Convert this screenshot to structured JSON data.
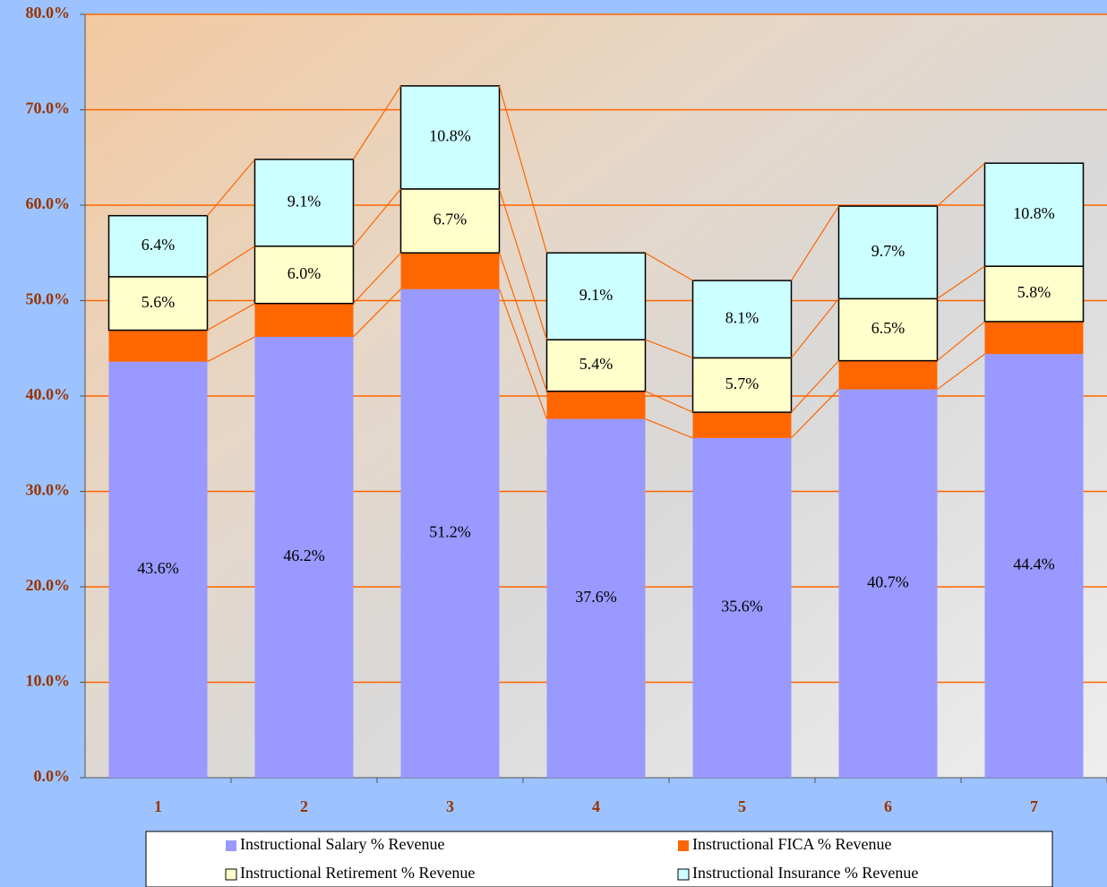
{
  "chart_data": {
    "type": "stacked_bar",
    "categories": [
      "1",
      "2",
      "3",
      "4",
      "5",
      "6",
      "7"
    ],
    "series": [
      {
        "name": "Instructional Salary % Revenue",
        "color": "#9999ff",
        "values": [
          43.6,
          46.2,
          51.2,
          37.6,
          35.6,
          40.7,
          44.4
        ],
        "value_labels": [
          "43.6%",
          "46.2%",
          "51.2%",
          "37.6%",
          "35.6%",
          "40.7%",
          "44.4%"
        ]
      },
      {
        "name": "Instructional FICA % Revenue",
        "color": "#ff6600",
        "values": [
          3.3,
          3.5,
          3.8,
          2.9,
          2.7,
          3.0,
          3.4
        ]
      },
      {
        "name": "Instructional Retirement % Revenue",
        "color": "#ffffcc",
        "values": [
          5.6,
          6.0,
          6.7,
          5.4,
          5.7,
          6.5,
          5.8
        ],
        "value_labels": [
          "5.6%",
          "6.0%",
          "6.7%",
          "5.4%",
          "5.7%",
          "6.5%",
          "5.8%"
        ]
      },
      {
        "name": "Instructional Insurance % Revenue",
        "color": "#ccffff",
        "values": [
          6.4,
          9.1,
          10.8,
          9.1,
          8.1,
          9.7,
          10.8
        ],
        "value_labels": [
          "6.4%",
          "9.1%",
          "10.8%",
          "9.1%",
          "8.1%",
          "9.7%",
          "10.8%"
        ]
      }
    ],
    "ylim": [
      0,
      80
    ],
    "yticks": [
      {
        "value": 0,
        "label": "0.0%"
      },
      {
        "value": 10,
        "label": "10.0%"
      },
      {
        "value": 20,
        "label": "20.0%"
      },
      {
        "value": 30,
        "label": "30.0%"
      },
      {
        "value": 40,
        "label": "40.0%"
      },
      {
        "value": 50,
        "label": "50.0%"
      },
      {
        "value": 60,
        "label": "60.0%"
      },
      {
        "value": 70,
        "label": "70.0%"
      },
      {
        "value": 80,
        "label": "80.0%"
      }
    ],
    "grid": true,
    "grid_color": "#ff6600",
    "legend": "bottom"
  }
}
